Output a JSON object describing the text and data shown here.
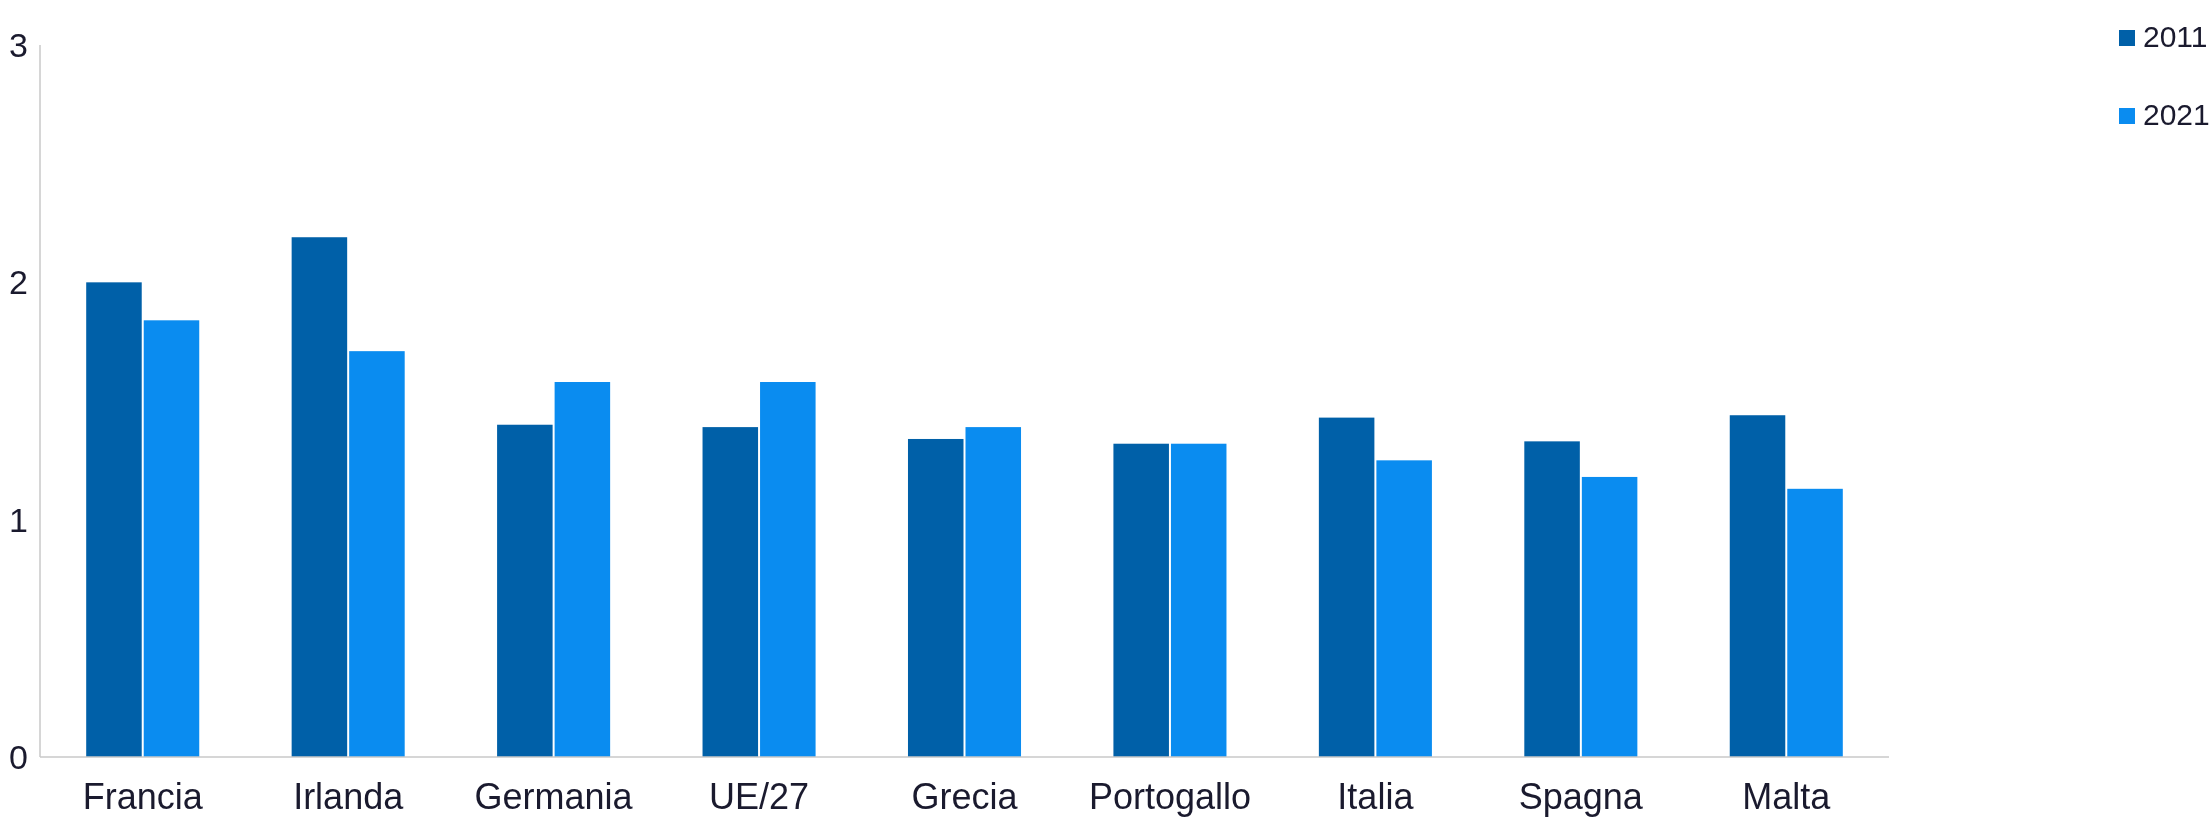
{
  "chart_data": {
    "type": "bar",
    "categories": [
      "Francia",
      "Irlanda",
      "Germania",
      "UE/27",
      "Grecia",
      "Portogallo",
      "Italia",
      "Spagna",
      "Malta"
    ],
    "series": [
      {
        "name": "2011",
        "color": "#0060a8",
        "values": [
          2.0,
          2.19,
          1.4,
          1.39,
          1.34,
          1.32,
          1.43,
          1.33,
          1.44
        ]
      },
      {
        "name": "2021",
        "color": "#0a8cf0",
        "values": [
          1.84,
          1.71,
          1.58,
          1.58,
          1.39,
          1.32,
          1.25,
          1.18,
          1.13
        ]
      }
    ],
    "ylim": [
      0,
      3
    ],
    "yticks": [
      0,
      1,
      2,
      3
    ],
    "grid": false,
    "legend": "top right"
  }
}
